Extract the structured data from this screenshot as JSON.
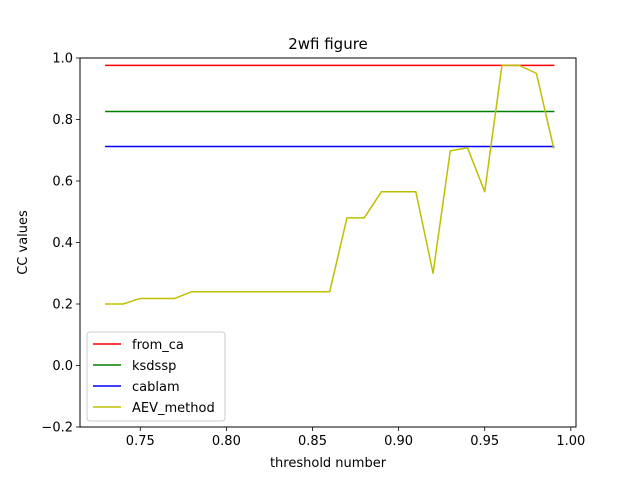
{
  "chart_data": {
    "type": "line",
    "title": "2wfi figure",
    "xlabel": "threshold number",
    "ylabel": "CC values",
    "xlim": [
      0.715,
      1.003
    ],
    "ylim": [
      -0.2,
      1.0
    ],
    "xticks": [
      0.75,
      0.8,
      0.85,
      0.9,
      0.95,
      1.0
    ],
    "xtick_labels": [
      "0.75",
      "0.80",
      "0.85",
      "0.90",
      "0.95",
      "1.00"
    ],
    "yticks": [
      -0.2,
      0.0,
      0.2,
      0.4,
      0.6,
      0.8,
      1.0
    ],
    "ytick_labels": [
      "−0.2",
      "0.0",
      "0.2",
      "0.4",
      "0.6",
      "0.8",
      "1.0"
    ],
    "grid": false,
    "legend_position": "lower-left",
    "series": [
      {
        "name": "from_ca",
        "color": "#ff0000",
        "x": [
          0.73,
          0.99
        ],
        "y": [
          0.976,
          0.976
        ]
      },
      {
        "name": "ksdssp",
        "color": "#008000",
        "x": [
          0.73,
          0.99
        ],
        "y": [
          0.826,
          0.826
        ]
      },
      {
        "name": "cablam",
        "color": "#0000ff",
        "x": [
          0.73,
          0.99
        ],
        "y": [
          0.712,
          0.712
        ]
      },
      {
        "name": "AEV_method",
        "color": "#bfbf00",
        "x": [
          0.73,
          0.74,
          0.75,
          0.76,
          0.77,
          0.78,
          0.79,
          0.8,
          0.81,
          0.82,
          0.83,
          0.84,
          0.85,
          0.86,
          0.87,
          0.88,
          0.89,
          0.9,
          0.91,
          0.92,
          0.93,
          0.94,
          0.95,
          0.96,
          0.97,
          0.98,
          0.99
        ],
        "y": [
          0.2,
          0.2,
          0.218,
          0.218,
          0.218,
          0.24,
          0.24,
          0.24,
          0.24,
          0.24,
          0.24,
          0.24,
          0.24,
          0.24,
          0.48,
          0.48,
          0.565,
          0.565,
          0.565,
          0.3,
          0.698,
          0.708,
          0.565,
          0.976,
          0.976,
          0.95,
          0.708
        ]
      }
    ]
  }
}
